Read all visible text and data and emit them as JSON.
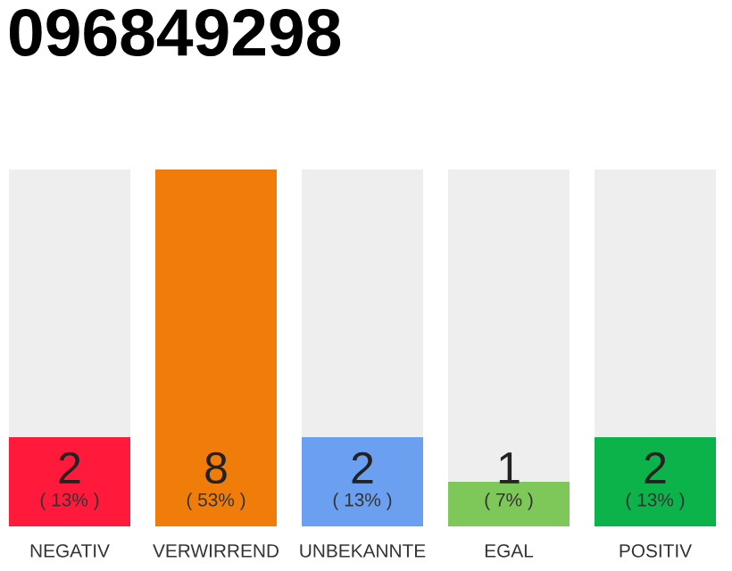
{
  "chart_data": {
    "type": "bar",
    "title": "096849298",
    "categories": [
      "NEGATIV",
      "VERWIRREND",
      "UNBEKANNTE",
      "EGAL",
      "POSITIV"
    ],
    "values": [
      2,
      8,
      2,
      1,
      2
    ],
    "colors": [
      "#ff1a3c",
      "#f07c0a",
      "#6aa0ef",
      "#7ec85a",
      "#0bb34a"
    ],
    "value_labels": [
      "2",
      "8",
      "2",
      "1",
      "2"
    ],
    "annotations": [
      "( 13% )",
      "( 53% )",
      "( 13% )",
      "( 7% )",
      "( 13% )"
    ],
    "grid": false,
    "legend": false
  }
}
